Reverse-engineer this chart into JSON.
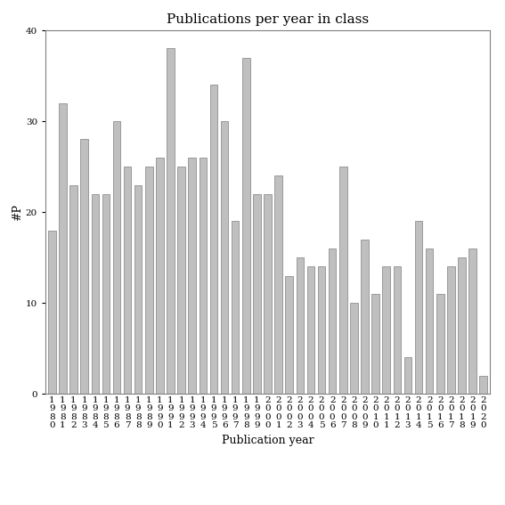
{
  "title": "Publications per year in class",
  "xlabel": "Publication year",
  "ylabel": "#P",
  "years": [
    "1980",
    "1981",
    "1982",
    "1983",
    "1984",
    "1985",
    "1986",
    "1987",
    "1988",
    "1989",
    "1990",
    "1991",
    "1992",
    "1993",
    "1994",
    "1995",
    "1996",
    "1997",
    "1998",
    "1999",
    "2000",
    "2001",
    "2002",
    "2003",
    "2004",
    "2005",
    "2006",
    "2007",
    "2008",
    "2009",
    "2010",
    "2011",
    "2012",
    "2013",
    "2014",
    "2015",
    "2016",
    "2017",
    "2018",
    "2019",
    "2020"
  ],
  "values": [
    18,
    32,
    23,
    28,
    22,
    22,
    30,
    25,
    23,
    25,
    26,
    38,
    25,
    26,
    26,
    34,
    30,
    19,
    37,
    22,
    22,
    24,
    13,
    15,
    14,
    14,
    16,
    25,
    10,
    17,
    11,
    14,
    14,
    4,
    19,
    16,
    11,
    14,
    15,
    16,
    2
  ],
  "bar_color": "#bfbfbf",
  "bar_edge_color": "#808080",
  "ylim": [
    0,
    40
  ],
  "yticks": [
    0,
    10,
    20,
    30,
    40
  ],
  "bg_color": "#ffffff",
  "title_fontsize": 11,
  "label_fontsize": 9,
  "tick_fontsize": 7.5
}
